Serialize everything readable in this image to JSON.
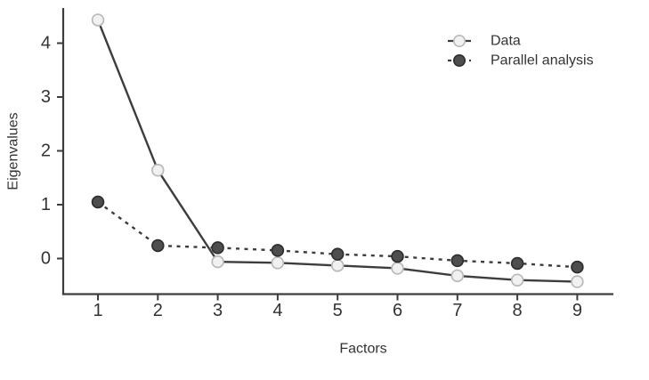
{
  "chart_data": {
    "type": "line",
    "title": "",
    "xlabel": "Factors",
    "ylabel": "Eigenvalues",
    "x": [
      1,
      2,
      3,
      4,
      5,
      6,
      7,
      8,
      9
    ],
    "series": [
      {
        "name": "Data",
        "line_style": "solid",
        "marker": "open",
        "values": [
          4.43,
          1.64,
          -0.06,
          -0.08,
          -0.13,
          -0.18,
          -0.32,
          -0.4,
          -0.43
        ]
      },
      {
        "name": "Parallel analysis",
        "line_style": "dashed",
        "marker": "filled",
        "values": [
          1.05,
          0.24,
          0.2,
          0.15,
          0.08,
          0.04,
          -0.04,
          -0.09,
          -0.16
        ]
      }
    ],
    "yticks": [
      0,
      1,
      2,
      3,
      4
    ],
    "ylim": [
      -0.67,
      4.65
    ],
    "xlim": [
      0.4,
      9.6
    ],
    "grid": false,
    "legend_position": "top-right",
    "colors": {
      "line": "#3d3d3d",
      "axis": "#3d3d3d",
      "text": "#333333",
      "open_marker_fill": "#f1f1f1",
      "open_marker_stroke": "#b9b9b9",
      "filled_marker_fill": "#4e4e4e",
      "filled_marker_stroke": "#2e2e2e",
      "background": "#ffffff"
    }
  }
}
